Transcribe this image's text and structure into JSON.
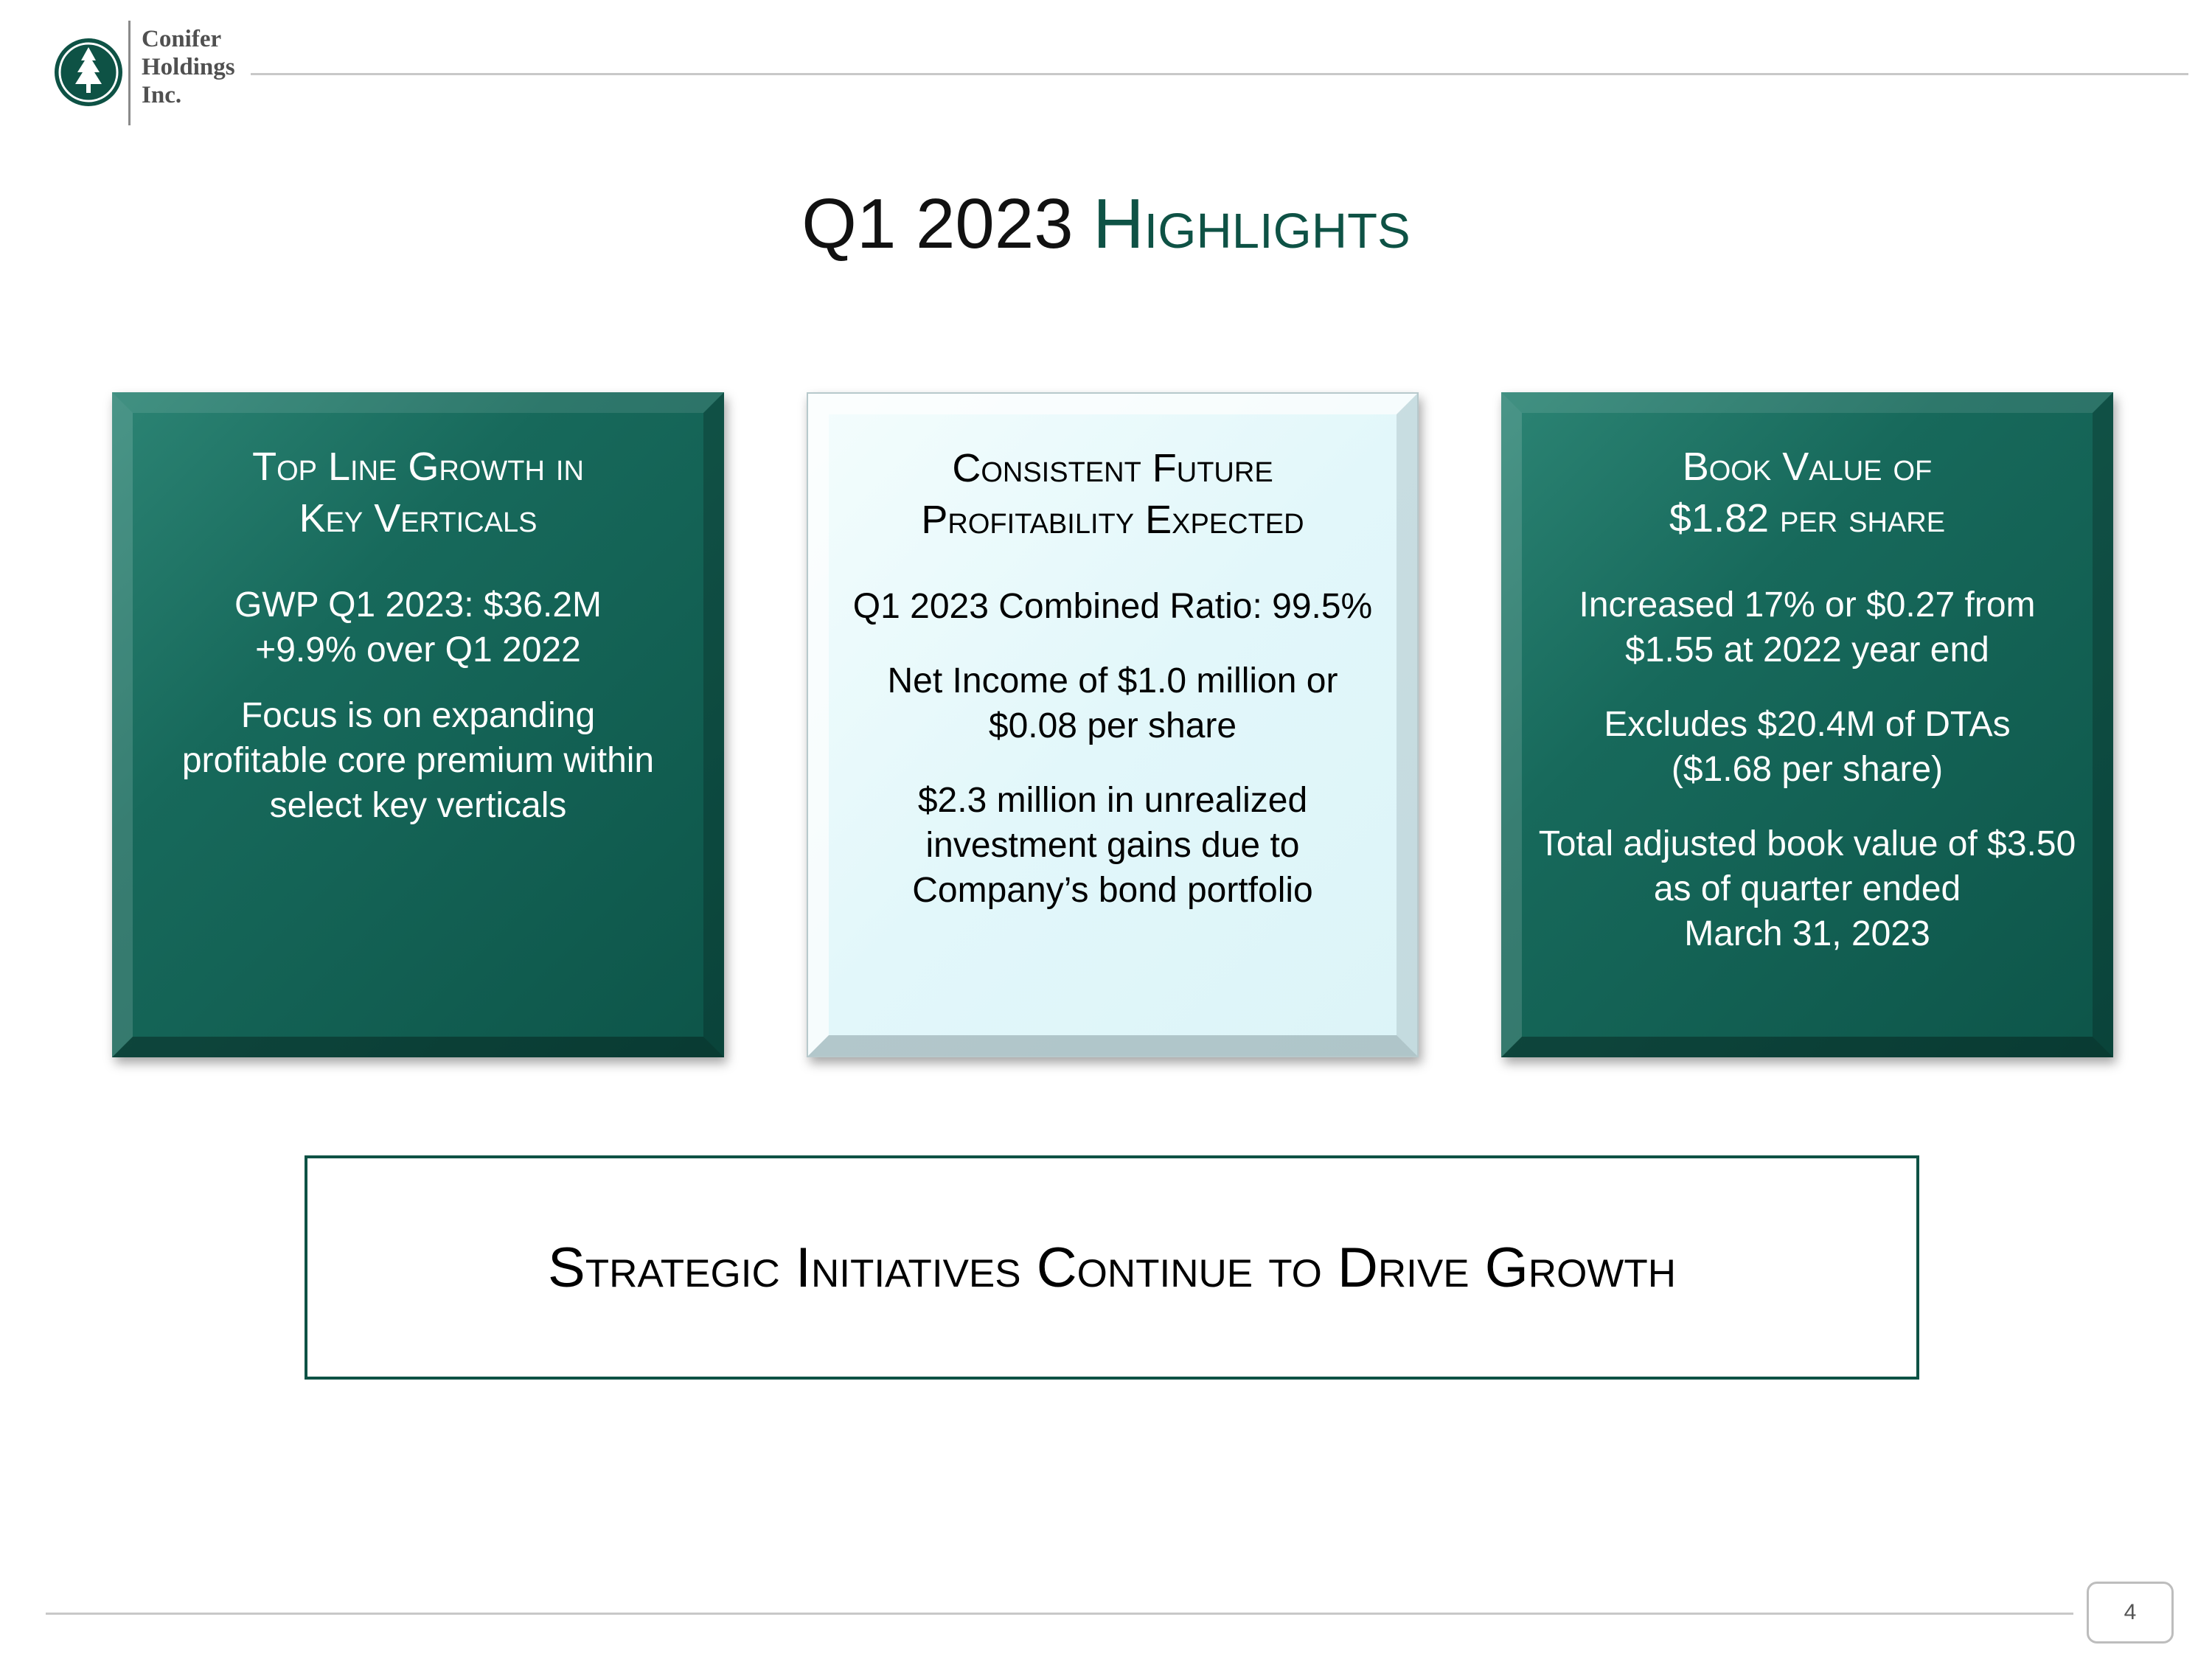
{
  "header": {
    "logo_lines": [
      "Conifer",
      "Holdings",
      "Inc."
    ],
    "title_part1": "Q1 2023 ",
    "title_part2": "Highlights"
  },
  "cards": [
    {
      "heading": [
        "Top Line Growth in",
        "Key Verticals"
      ],
      "paragraphs": [
        [
          "GWP Q1 2023: $36.2M",
          "+9.9% over Q1 2022"
        ],
        [
          "Focus is on expanding",
          "profitable core premium within",
          "select key verticals"
        ]
      ]
    },
    {
      "heading": [
        "Consistent Future",
        "Profitability Expected"
      ],
      "paragraphs": [
        [
          "Q1 2023 Combined Ratio: 99.5%"
        ],
        [
          "Net Income of $1.0 million or",
          "$0.08 per share"
        ],
        [
          "$2.3 million in unrealized",
          "investment gains due to",
          "Company’s bond portfolio"
        ]
      ]
    },
    {
      "heading": [
        "Book Value of",
        "$1.82 per share"
      ],
      "paragraphs": [
        [
          "Increased 17% or $0.27 from",
          "$1.55 at 2022 year end"
        ],
        [
          "Excludes $20.4M of DTAs",
          "($1.68 per share)"
        ],
        [
          "Total adjusted book value of $3.50",
          "as of quarter ended",
          "March 31, 2023"
        ]
      ]
    }
  ],
  "banner": {
    "text": "Strategic Initiatives Continue to Drive Growth"
  },
  "footer": {
    "page_number": "4"
  },
  "colors": {
    "brand_green": "#0e5245",
    "card_light": "#e2f7fa"
  }
}
